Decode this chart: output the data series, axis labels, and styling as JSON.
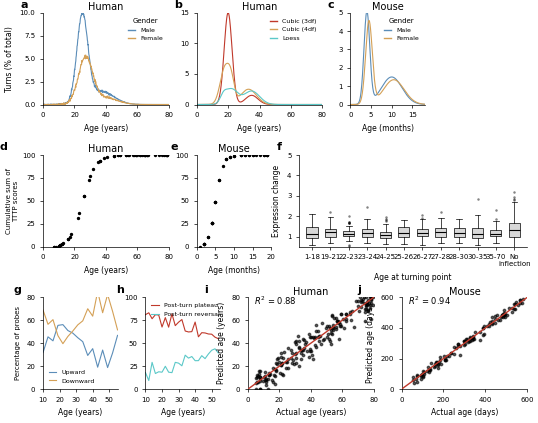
{
  "panel_a": {
    "title": "Human",
    "xlabel": "Age (years)",
    "ylabel": "Turns (% of total)",
    "male_peak_age": 25,
    "male_peak_val": 9.5,
    "female_peak_age": 27,
    "female_peak_val": 5.0,
    "male_color": "#5b8db8",
    "female_color": "#d4a056",
    "xmax": 80,
    "ymax": 10
  },
  "panel_b": {
    "title": "Human",
    "xlabel": "Age (years)",
    "ylabel": "",
    "cubic3_color": "#c0392b",
    "cubic4_color": "#d4a056",
    "loess_color": "#5bc8c8",
    "xmax": 80,
    "ymax": 15
  },
  "panel_c": {
    "title": "Mouse",
    "xlabel": "Age (months)",
    "ylabel": "",
    "male_color": "#5b8db8",
    "female_color": "#d4a056",
    "xmax": 18,
    "ymax": 5
  },
  "panel_d": {
    "title": "Human",
    "xlabel": "Age (years)",
    "ylabel": "Cumulative sum of\nTTTP scores",
    "xmax": 80,
    "ymax": 100
  },
  "panel_e": {
    "title": "Mouse",
    "xlabel": "Age (months)",
    "ylabel": "",
    "xmax": 20,
    "ymax": 100
  },
  "panel_f": {
    "title": "",
    "xlabel": "Age at turning point",
    "ylabel": "Expression change",
    "categories": [
      "1-18",
      "19-21",
      "22-23",
      "23-24",
      "24-25",
      "25-26",
      "26-27",
      "27-28",
      "28-30",
      "30-35",
      "35-70",
      "No\ninflection"
    ],
    "ymax": 5
  },
  "panel_g": {
    "title": "",
    "xlabel": "Age (years)",
    "ylabel": "Percentage of probes",
    "up_color": "#5b8db8",
    "down_color": "#d4a056",
    "xmax": 55,
    "ymax": 80
  },
  "panel_h": {
    "title": "",
    "xlabel": "Age (years)",
    "ylabel": "",
    "plateau_color": "#c0392b",
    "reversal_color": "#5bc8c8",
    "xmax": 55,
    "ymax": 100
  },
  "panel_i": {
    "title": "Human",
    "xlabel": "Actual age (years)",
    "ylabel": "Predicted age (years)",
    "r2": 0.88,
    "line_color": "#c0392b",
    "xmax": 80,
    "ymax": 80
  },
  "panel_j": {
    "title": "Mouse",
    "xlabel": "Actual age (days)",
    "ylabel": "Predicted age (days)",
    "r2": 0.94,
    "line_color": "#c0392b",
    "xmax": 600,
    "ymax": 600
  },
  "bg_color": "#ffffff",
  "text_color": "#333333"
}
